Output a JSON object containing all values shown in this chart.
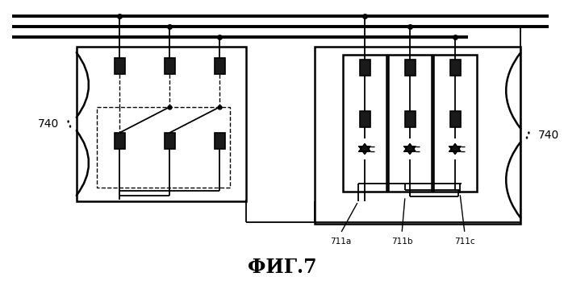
{
  "bg_color": "#ffffff",
  "lc": "#000000",
  "title": "ФИГ.7",
  "label_740": "740",
  "labels_711": [
    "711a",
    "711b",
    "711c"
  ],
  "fig_width": 6.99,
  "fig_height": 3.54,
  "dpi": 100
}
